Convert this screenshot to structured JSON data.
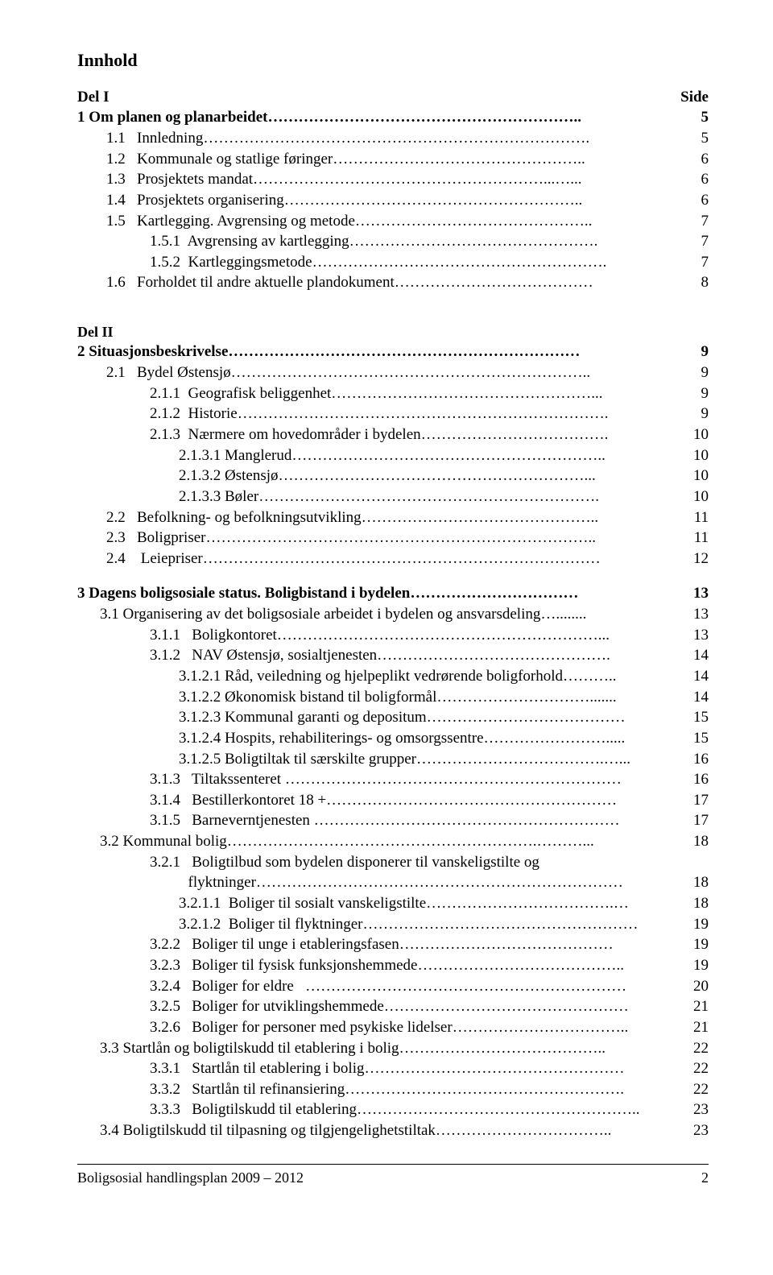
{
  "title": "Innhold",
  "side_label": "Side",
  "del1_label": "Del I",
  "del2_label": "Del II",
  "footer_text": "Boligsosial handlingsplan 2009 – 2012",
  "footer_page": "2",
  "rows": [
    {
      "cls": "bold-row row-i0",
      "label": "1 Om planen og planarbeidet……………………………………………………..",
      "page": "5"
    },
    {
      "cls": "row row-i1",
      "label": "1.1   Innledning………………………………………………………………….",
      "page": "5"
    },
    {
      "cls": "row row-i1",
      "label": "1.2   Kommunale og statlige føringer…………………………………………..",
      "page": "6"
    },
    {
      "cls": "row row-i1",
      "label": "1.3   Prosjektets mandat…………………………………………………...…...",
      "page": "6"
    },
    {
      "cls": "row row-i1",
      "label": "1.4   Prosjektets organisering…………………………………………………..",
      "page": "6"
    },
    {
      "cls": "row row-i1",
      "label": "1.5   Kartlegging. Avgrensing og metode………………………………………..",
      "page": "7"
    },
    {
      "cls": "row row-i2",
      "label": "1.5.1  Avgrensing av kartlegging………………………………………….",
      "page": "7"
    },
    {
      "cls": "row row-i2",
      "label": "1.5.2  Kartleggingsmetode………………………………………………….",
      "page": "7"
    },
    {
      "cls": "row row-i1",
      "label": "1.6   Forholdet til andre aktuelle plandokument…………………………………",
      "page": "8"
    }
  ],
  "rows2": [
    {
      "cls": "bold-row row-i0",
      "label": "2 Situasjonsbeskrivelse……………………………………………………………",
      "page": "9"
    },
    {
      "cls": "row row-i1",
      "label": "2.1   Bydel Østensjø……………………………………………………………..",
      "page": "9"
    },
    {
      "cls": "row row-i2",
      "label": "2.1.1  Geografisk beliggenhet……………………………………………...",
      "page": "9"
    },
    {
      "cls": "row row-i2",
      "label": "2.1.2  Historie……………………………………………………………….",
      "page": "9"
    },
    {
      "cls": "row row-i2",
      "label": "2.1.3  Nærmere om hovedområder i bydelen……………………………….",
      "page": "10"
    },
    {
      "cls": "row row-i3",
      "label": "2.1.3.1 Manglerud……………………………………………………..",
      "page": "10"
    },
    {
      "cls": "row row-i3",
      "label": "2.1.3.2 Østensjø……………………………………………………...",
      "page": "10"
    },
    {
      "cls": "row row-i3",
      "label": "2.1.3.3 Bøler………………………………………………………….",
      "page": "10"
    },
    {
      "cls": "row row-i1",
      "label": "2.2   Befolkning- og befolkningsutvikling………………………………………..",
      "page": "11"
    },
    {
      "cls": "row row-i1",
      "label": "2.3   Boligpriser…………………………………………………………………..",
      "page": "11"
    },
    {
      "cls": "row row-i1",
      "label": "2.4    Leiepriser……………………………………………………………………",
      "page": "12"
    }
  ],
  "rows3": [
    {
      "cls": "bold-row row-i0",
      "label": "3 Dagens boligsosiale status. Boligbistand i bydelen……………………………",
      "page": "13"
    },
    {
      "cls": "row row-i1b",
      "label": "3.1 Organisering av det boligsosiale arbeidet i bydelen og ansvarsdeling…........",
      "page": "13"
    },
    {
      "cls": "row row-i2",
      "label": "3.1.1   Boligkontoret………………………………………………………...",
      "page": "13"
    },
    {
      "cls": "row row-i2",
      "label": "3.1.2   NAV Østensjø, sosialtjenesten……………………………………….",
      "page": "14"
    },
    {
      "cls": "row row-i3",
      "label": "3.1.2.1 Råd, veiledning og hjelpeplikt vedrørende boligforhold………..",
      "page": "14"
    },
    {
      "cls": "row row-i3",
      "label": "3.1.2.2 Økonomisk bistand til boligformål………………………….......",
      "page": "14"
    },
    {
      "cls": "row row-i3",
      "label": "3.1.2.3 Kommunal garanti og depositum…………………………………",
      "page": "15"
    },
    {
      "cls": "row row-i3",
      "label": "3.1.2.4 Hospits, rehabiliterings- og omsorgssentre…………………….....",
      "page": "15"
    },
    {
      "cls": "row row-i3",
      "label": "3.1.2.5 Boligtiltak til særskilte grupper……………………………….…...",
      "page": "16"
    },
    {
      "cls": "row row-i2",
      "label": "3.1.3   Tiltakssenteret …………………………………………………………",
      "page": "16"
    },
    {
      "cls": "row row-i2",
      "label": "3.1.4   Bestillerkontoret 18 +…………………………………………………",
      "page": "17"
    },
    {
      "cls": "row row-i2",
      "label": "3.1.5   Barneverntjenesten ……………………………………………………",
      "page": "17"
    },
    {
      "cls": "row row-i1b",
      "label": "3.2 Kommunal bolig…………………………………………………….………...",
      "page": "18"
    },
    {
      "cls": "row row-i2",
      "label": "3.2.1   Boligtilbud som bydelen disponerer til vanskeligstilte og",
      "page": ""
    },
    {
      "cls": "row row-i2",
      "label": "          flyktninger………………………………………………………………",
      "page": "18"
    },
    {
      "cls": "row row-i3",
      "label": "3.2.1.1  Boliger til sosialt vanskeligstilte……………………………….…",
      "page": "18"
    },
    {
      "cls": "row row-i3",
      "label": "3.2.1.2  Boliger til flyktninger………………………………………………",
      "page": "19"
    },
    {
      "cls": "row row-i2",
      "label": "3.2.2   Boliger til unge i etableringsfasen……………………………………",
      "page": "19"
    },
    {
      "cls": "row row-i2",
      "label": "3.2.3   Boliger til fysisk funksjonshemmede…………………………………..",
      "page": "19"
    },
    {
      "cls": "row row-i2",
      "label": "3.2.4   Boliger for eldre   ………………………………………………………",
      "page": "20"
    },
    {
      "cls": "row row-i2",
      "label": "3.2.5   Boliger for utviklingshemmede…………………………………………",
      "page": "21"
    },
    {
      "cls": "row row-i2",
      "label": "3.2.6   Boliger for personer med psykiske lidelser……………………………..",
      "page": "21"
    },
    {
      "cls": "row row-i1b",
      "label": "3.3 Startlån og boligtilskudd til etablering i bolig…………………………………..",
      "page": "22"
    },
    {
      "cls": "row row-i2",
      "label": "3.3.1   Startlån til etablering i bolig……………………………………………",
      "page": "22"
    },
    {
      "cls": "row row-i2",
      "label": "3.3.2   Startlån til refinansiering……………………………………………….",
      "page": "22"
    },
    {
      "cls": "row row-i2",
      "label": "3.3.3   Boligtilskudd til etablering………………………………………………..",
      "page": "23"
    },
    {
      "cls": "row row-i1b",
      "label": "3.4 Boligtilskudd til tilpasning og tilgjengelighetstiltak……………………………..",
      "page": "23"
    }
  ]
}
